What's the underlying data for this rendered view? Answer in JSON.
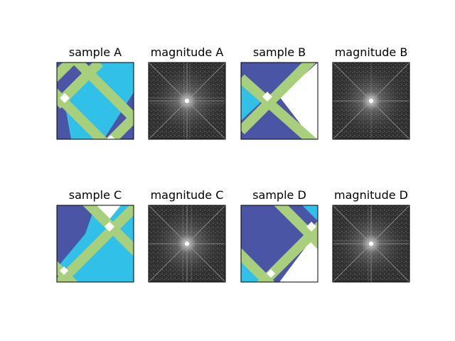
{
  "colors": {
    "dark_blue": "#4a55a6",
    "cyan": "#30c0e8",
    "green_stripe": "#a8d07c",
    "white": "#ffffff",
    "spectrum_bg": "#333333"
  },
  "panels": [
    {
      "title": "sample A",
      "kind": "sample"
    },
    {
      "title": "magnitude A",
      "kind": "magnitude"
    },
    {
      "title": "sample B",
      "kind": "sample"
    },
    {
      "title": "magnitude B",
      "kind": "magnitude"
    },
    {
      "title": "sample C",
      "kind": "sample"
    },
    {
      "title": "magnitude C",
      "kind": "magnitude"
    },
    {
      "title": "sample D",
      "kind": "sample"
    },
    {
      "title": "magnitude D",
      "kind": "magnitude"
    }
  ]
}
